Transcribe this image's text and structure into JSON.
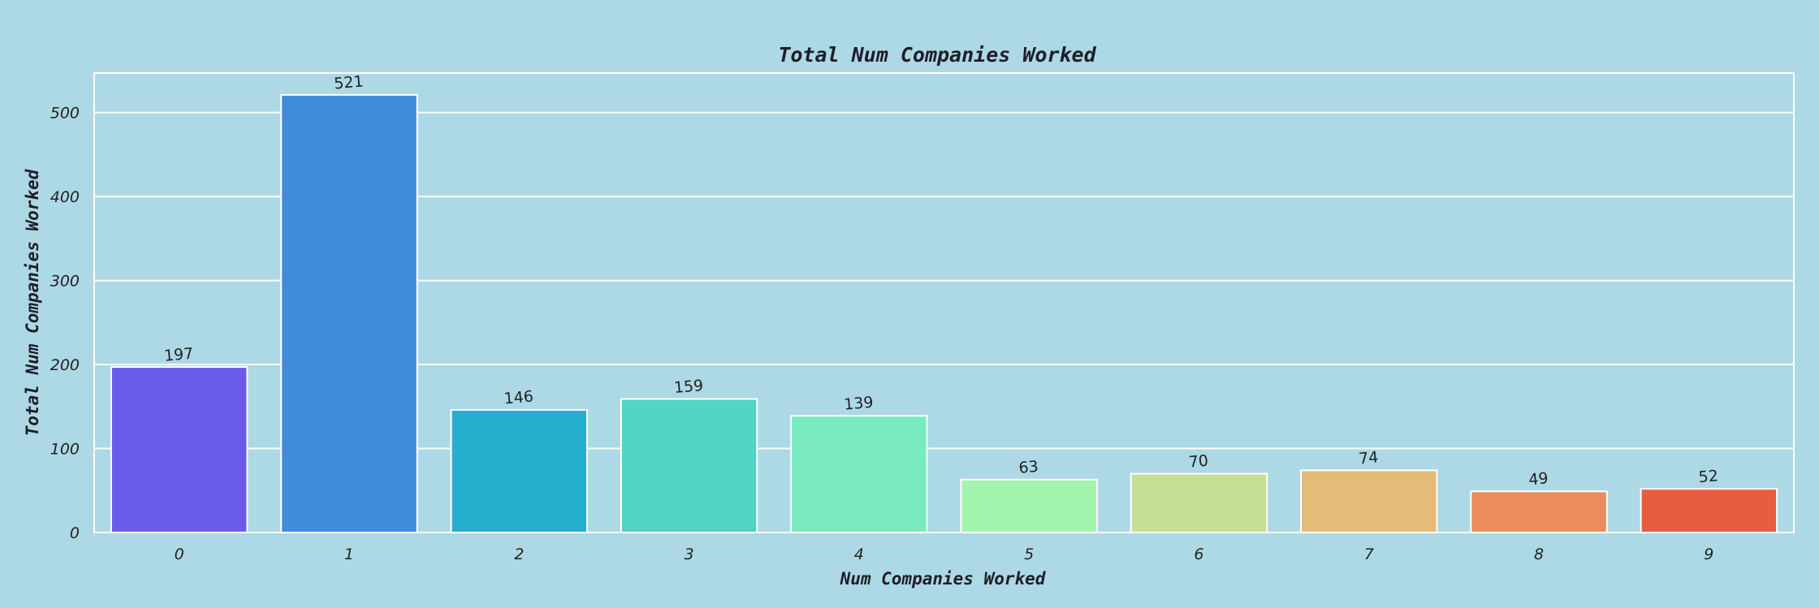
{
  "chart_data": {
    "type": "bar",
    "title": "Total Num Companies Worked",
    "xlabel": "Num Companies Worked",
    "ylabel": "Total Num Companies Worked",
    "categories": [
      "0",
      "1",
      "2",
      "3",
      "4",
      "5",
      "6",
      "7",
      "8",
      "9"
    ],
    "values": [
      197,
      521,
      146,
      159,
      139,
      63,
      70,
      74,
      49,
      52
    ],
    "value_labels": [
      "197",
      "521",
      "146",
      "159",
      "139",
      "63",
      "70",
      "74",
      "49",
      "52"
    ],
    "ylim": [
      0,
      547
    ],
    "yticks": [
      0,
      100,
      200,
      300,
      400,
      500
    ],
    "ytick_labels": [
      "0",
      "100",
      "200",
      "300",
      "400",
      "500"
    ],
    "grid": true,
    "colors": [
      "#6a5be9",
      "#3f8bdc",
      "#25afcf",
      "#51d3c6",
      "#7aebc0",
      "#a3f4ad",
      "#c5df93",
      "#e4bb78",
      "#ea8c5c",
      "#e75d3f"
    ],
    "background": "#add8e6",
    "gridline_color": "#ffffff"
  }
}
